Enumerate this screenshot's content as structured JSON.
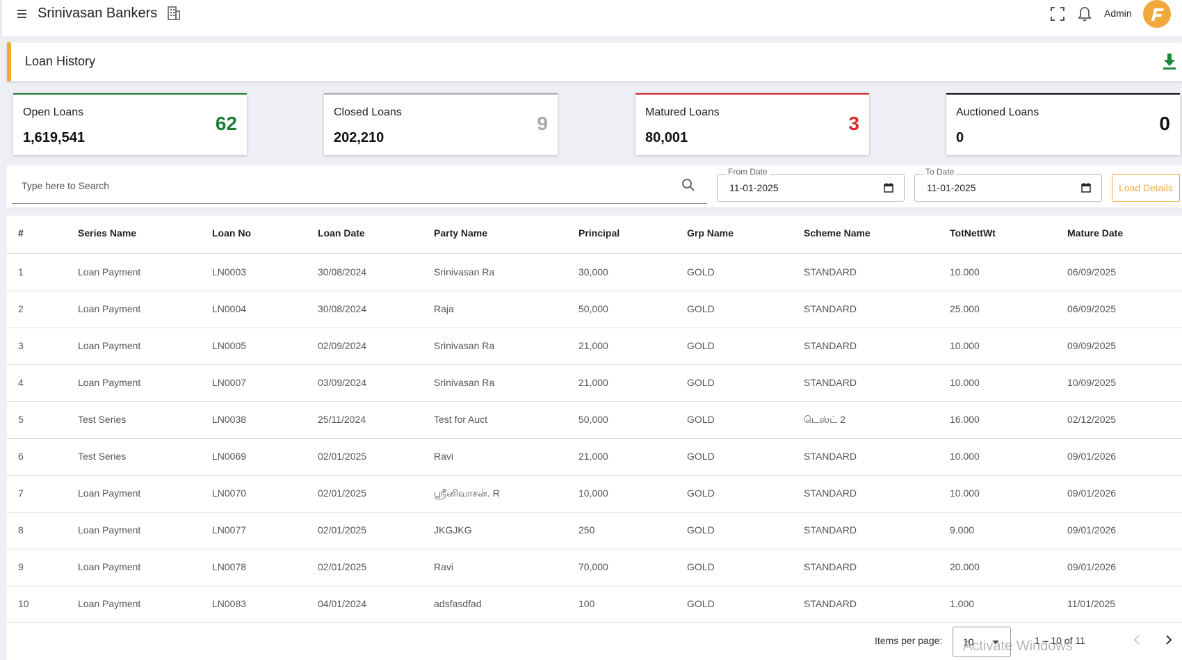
{
  "topbar": {
    "app_title": "Srinivasan Bankers",
    "user_label": "Admin",
    "icons": [
      "menu-icon",
      "building-icon",
      "fullscreen-icon",
      "bell-icon",
      "logo"
    ]
  },
  "page": {
    "title": "Loan History",
    "download_icon": "download-icon",
    "accent_color": "#f2a93b"
  },
  "stats": [
    {
      "label": "Open Loans",
      "amount": "1,619,541",
      "count": "62",
      "color": "#1b7d34"
    },
    {
      "label": "Closed Loans",
      "amount": "202,210",
      "count": "9",
      "color": "#aaaaaa"
    },
    {
      "label": "Matured Loans",
      "amount": "80,001",
      "count": "3",
      "color": "#d9282f"
    },
    {
      "label": "Auctioned Loans",
      "amount": "0",
      "count": "0",
      "color": "#111111"
    }
  ],
  "filters": {
    "search_placeholder": "Type here to Search",
    "from_date_label": "From Date",
    "from_date_value": "11-01-2025",
    "to_date_label": "To Date",
    "to_date_value": "11-01-2025",
    "load_button": "Load Details"
  },
  "table": {
    "columns": [
      "#",
      "Series Name",
      "Loan No",
      "Loan Date",
      "Party Name",
      "Principal",
      "Grp Name",
      "Scheme Name",
      "TotNettWt",
      "Mature Date"
    ],
    "rows": [
      [
        "1",
        "Loan Payment",
        "LN0003",
        "30/08/2024",
        "Srinivasan Ra",
        "30,000",
        "GOLD",
        "STANDARD",
        "10.000",
        "06/09/2025"
      ],
      [
        "2",
        "Loan Payment",
        "LN0004",
        "30/08/2024",
        "Raja",
        "50,000",
        "GOLD",
        "STANDARD",
        "25.000",
        "06/09/2025"
      ],
      [
        "3",
        "Loan Payment",
        "LN0005",
        "02/09/2024",
        "Srinivasan Ra",
        "21,000",
        "GOLD",
        "STANDARD",
        "10.000",
        "09/09/2025"
      ],
      [
        "4",
        "Loan Payment",
        "LN0007",
        "03/09/2024",
        "Srinivasan Ra",
        "21,000",
        "GOLD",
        "STANDARD",
        "10.000",
        "10/09/2025"
      ],
      [
        "5",
        "Test Series",
        "LN0038",
        "25/11/2024",
        "Test for Auct",
        "50,000",
        "GOLD",
        "டெஸ்ட் 2",
        "16.000",
        "02/12/2025"
      ],
      [
        "6",
        "Test Series",
        "LN0069",
        "02/01/2025",
        "Ravi",
        "21,000",
        "GOLD",
        "STANDARD",
        "10.000",
        "09/01/2026"
      ],
      [
        "7",
        "Loan Payment",
        "LN0070",
        "02/01/2025",
        "ஸ்ரீனிவாசன். R",
        "10,000",
        "GOLD",
        "STANDARD",
        "10.000",
        "09/01/2026"
      ],
      [
        "8",
        "Loan Payment",
        "LN0077",
        "02/01/2025",
        "JKGJKG",
        "250",
        "GOLD",
        "STANDARD",
        "9.000",
        "09/01/2026"
      ],
      [
        "9",
        "Loan Payment",
        "LN0078",
        "02/01/2025",
        "Ravi",
        "70,000",
        "GOLD",
        "STANDARD",
        "20.000",
        "09/01/2026"
      ],
      [
        "10",
        "Loan Payment",
        "LN0083",
        "04/01/2024",
        "adsfasdfad",
        "100",
        "GOLD",
        "STANDARD",
        "1.000",
        "11/01/2025"
      ]
    ]
  },
  "paginator": {
    "items_per_page_label": "Items per page:",
    "items_per_page_value": "10",
    "range_label": "1 – 10 of 11"
  },
  "watermark": "Activate Windows"
}
